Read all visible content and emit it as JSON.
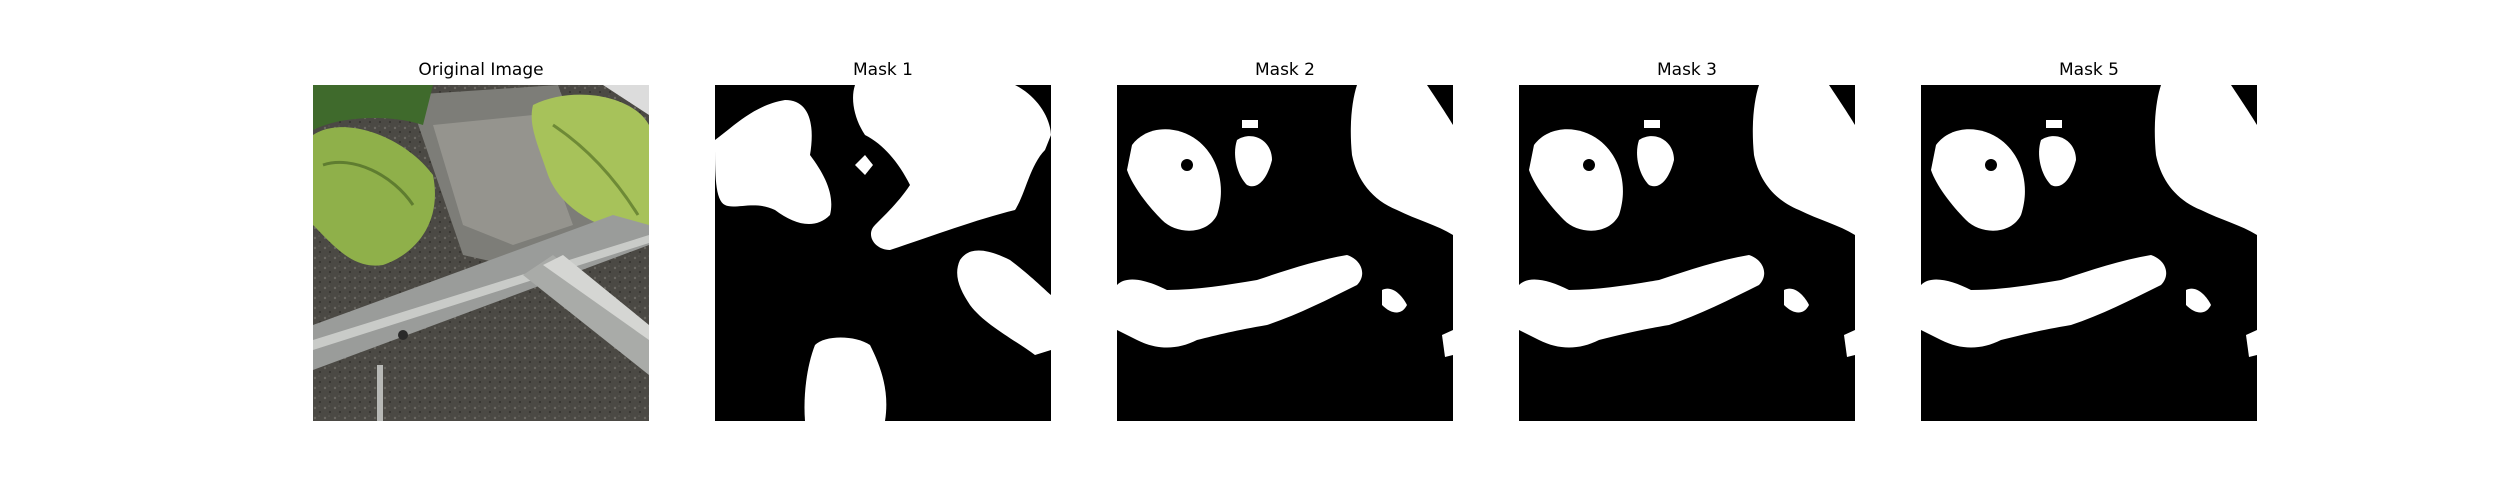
{
  "figure": {
    "panels": [
      {
        "title": "Original Image"
      },
      {
        "title": "Mask 1"
      },
      {
        "title": "Mask 2"
      },
      {
        "title": "Mask 3"
      },
      {
        "title": "Mask 5"
      }
    ]
  },
  "colors": {
    "mask_background": "#000000",
    "mask_foreground": "#ffffff",
    "soil": "#4a4843",
    "leaf": "#8fb04a",
    "leaf_dark": "#3f6a2c",
    "metal": "#9a9c9a",
    "concrete": "#7d7d78"
  }
}
